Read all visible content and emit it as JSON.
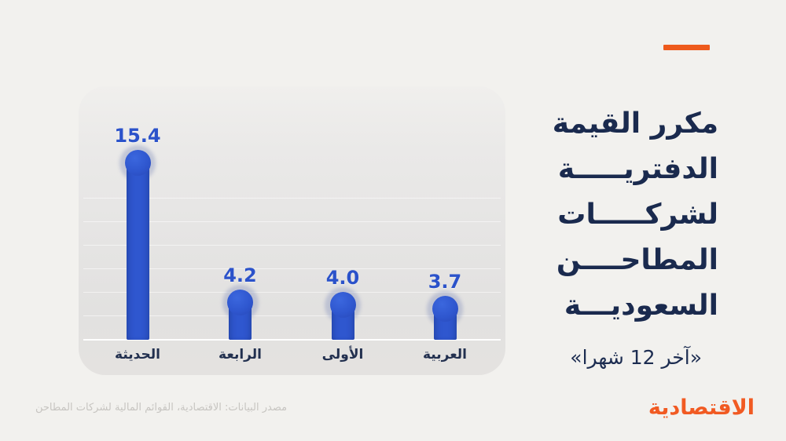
{
  "page": {
    "background": "#f2f1ee"
  },
  "brand": {
    "dash_color": "#ee5a1c",
    "logo_text": "الاقتصادية",
    "logo_color": "#f15a22"
  },
  "header": {
    "title_lines": [
      "مكرر القيمة",
      "الدفتريـــــة",
      "لشركـــــات",
      "المطاحــــن",
      "السعوديـــة"
    ],
    "subtitle": "«آخر 12 شهرا»"
  },
  "source_note": "مصدر البيانات: الاقتصادية، القوائم المالية لشركات المطاحن",
  "chart_data": {
    "type": "bar",
    "variant": "lollipop",
    "direction": "rtl",
    "title": "مكرر القيمة الدفترية لشركات المطاحن السعودية",
    "subtitle": "«آخر 12 شهرا»",
    "categories": [
      "الحديثة",
      "الرابعة",
      "الأولى",
      "العربية"
    ],
    "values": [
      15.4,
      4.2,
      4.0,
      3.7
    ],
    "value_labels": [
      "15.4",
      "4.2",
      "4.0",
      "3.7"
    ],
    "xlabel": "",
    "ylabel": "",
    "ylim": [
      0,
      16
    ],
    "grid": true,
    "legend": false,
    "bar_color": "#2f57cf",
    "value_label_color": "#2b52ca",
    "category_label_color": "#22304f"
  }
}
